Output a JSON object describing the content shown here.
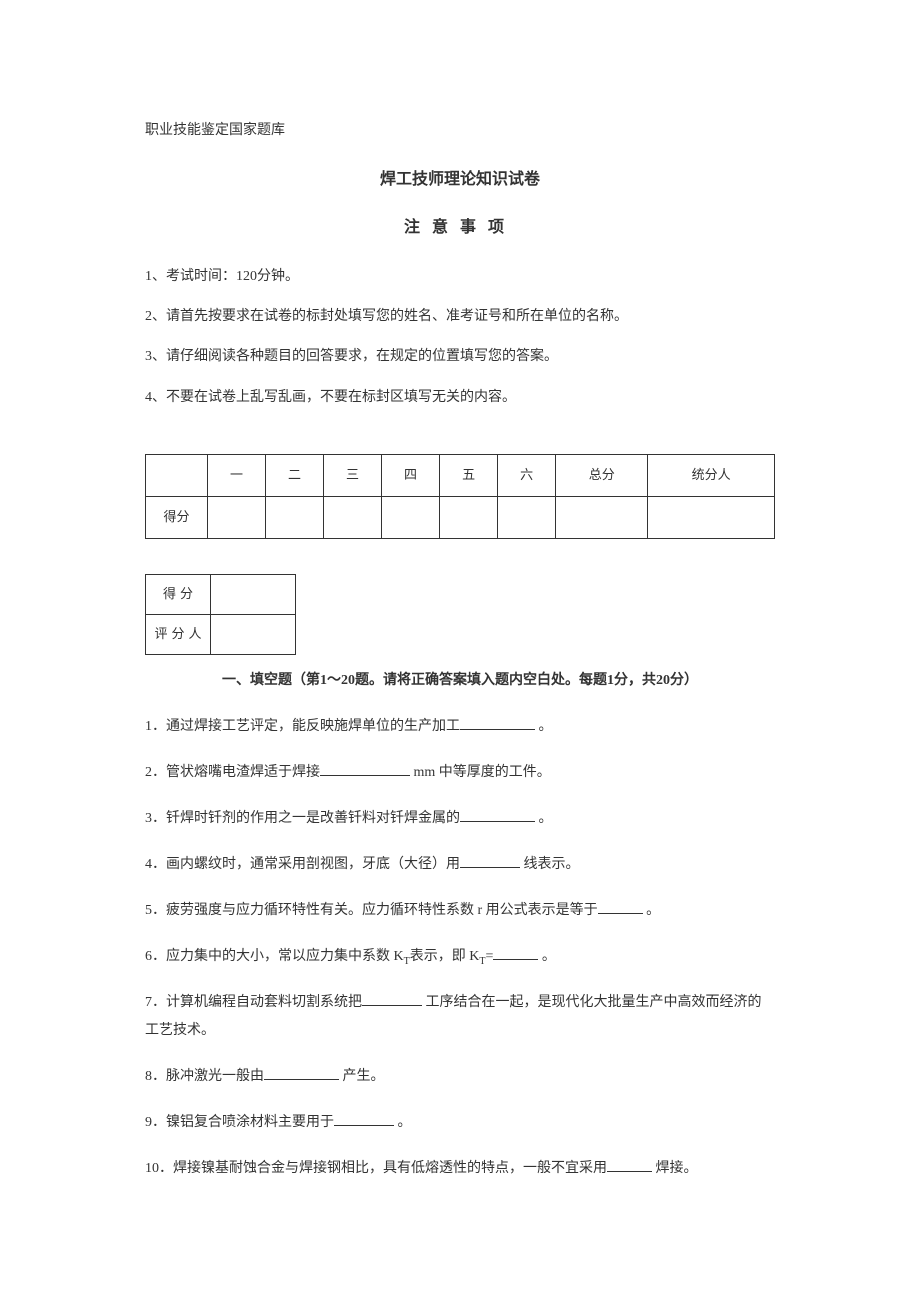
{
  "header": {
    "source": "职业技能鉴定国家题库",
    "title": "焊工技师理论知识试卷",
    "subtitle": "注意事项"
  },
  "instructions": {
    "item1": "1、考试时间：120分钟。",
    "item2": "2、请首先按要求在试卷的标封处填写您的姓名、准考证号和所在单位的名称。",
    "item3": "3、请仔细阅读各种题目的回答要求，在规定的位置填写您的答案。",
    "item4": "4、不要在试卷上乱写乱画，不要在标封区填写无关的内容。"
  },
  "score_table": {
    "columns": [
      "",
      "一",
      "二",
      "三",
      "四",
      "五",
      "六",
      "总分",
      "统分人"
    ],
    "row_label": "得分"
  },
  "small_table": {
    "row1_label": "得分",
    "row2_label": "评分人"
  },
  "section1": {
    "title": "一、填空题（第1～20题。请将正确答案填入题内空白处。每题1分，共20分）"
  },
  "questions": {
    "q1_pre": "1．通过焊接工艺评定，能反映施焊单位的生产加工",
    "q1_post": " 。",
    "q2_pre": "2．管状熔嘴电渣焊适于焊接",
    "q2_post": " mm 中等厚度的工件。",
    "q3_pre": "3．钎焊时钎剂的作用之一是改善钎料对钎焊金属的",
    "q3_post": " 。",
    "q4_pre": "4．画内螺纹时，通常采用剖视图，牙底（大径）用",
    "q4_post": " 线表示。",
    "q5_pre": "5．疲劳强度与应力循环特性有关。应力循环特性系数 r 用公式表示是等于",
    "q5_post": " 。",
    "q6_pre": "6．应力集中的大小，常以应力集中系数 K",
    "q6_sub1": "T",
    "q6_mid": "表示，即 K",
    "q6_sub2": "T",
    "q6_mid2": "=",
    "q6_post": " 。",
    "q7_pre": "7．计算机编程自动套料切割系统把",
    "q7_post": " 工序结合在一起，是现代化大批量生产中高效而经济的工艺技术。",
    "q8_pre": "8．脉冲激光一般由",
    "q8_post": " 产生。",
    "q9_pre": "9．镍铝复合喷涂材料主要用于",
    "q9_post": " 。",
    "q10_pre": "10．焊接镍基耐蚀合金与焊接钢相比，具有低熔透性的特点，一般不宜采用",
    "q10_post": " 焊接。"
  },
  "colors": {
    "text": "#333333",
    "background": "#ffffff",
    "border": "#333333"
  }
}
